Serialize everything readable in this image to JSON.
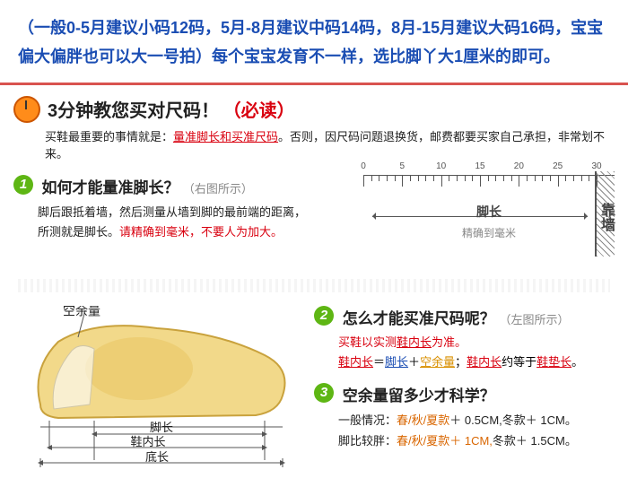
{
  "top_note": "（一般0-5月建议小码12码，5月-8月建议中码14码，8月-15月建议大码16码，宝宝偏大偏胖也可以大一号拍）每个宝宝发育不一样，选比脚丫大1厘米的即可。",
  "title": {
    "main": "3分钟教您买对尺码！",
    "red": "（必读）"
  },
  "subtitle": {
    "pre": "买鞋最重要的事情就是：",
    "highlight": "量准脚长和买准尺码",
    "post": "。否则，因尺码问题退换货，邮费都要买家自己承担，非常划不来。"
  },
  "q1": {
    "num": "1",
    "title": "如何才能量准脚长？",
    "note": "（右图所示）",
    "body1": "脚后跟抵着墙，然后测量从墙到脚的最前端的距离，",
    "body2_pre": "所测就是脚长。",
    "body2_red": "请精确到毫米，不要人为加大。",
    "ruler": {
      "ticks": [
        0,
        5,
        10,
        15,
        20,
        25,
        30
      ],
      "foot_label": "脚长",
      "foot_sub": "精确到毫米",
      "wall_label": "靠墙"
    }
  },
  "shoe": {
    "spare": "空余量",
    "foot_len": "脚长",
    "inner_len": "鞋内长",
    "sole_len": "底长"
  },
  "q2": {
    "num": "2",
    "title": "怎么才能买准尺码呢？",
    "note": "（左图所示）",
    "line1_pre": "买鞋以实测",
    "line1_red": "鞋内长",
    "line1_post": "为准。",
    "line2_a": "鞋内长",
    "line2_eq1": "＝",
    "line2_b": "脚长",
    "line2_plus": "＋",
    "line2_c": "空余量",
    "line2_sep": "；",
    "line2_d": "鞋内长",
    "line2_approx": "约等于",
    "line2_e": "鞋垫长",
    "line2_end": "。"
  },
  "q3": {
    "num": "3",
    "title": "空余量留多少才科学？",
    "line1_pre": "一般情况：",
    "line1_a": "春/秋/夏款",
    "line1_a2": "＋ 0.5CM,",
    "line1_b": "冬款＋ 1CM",
    "line1_end": "。",
    "line2_pre": "脚比较胖：",
    "line2_a": "春/秋/夏款＋ 1CM,",
    "line2_b": "冬款＋ 1.5CM",
    "line2_end": "。"
  }
}
